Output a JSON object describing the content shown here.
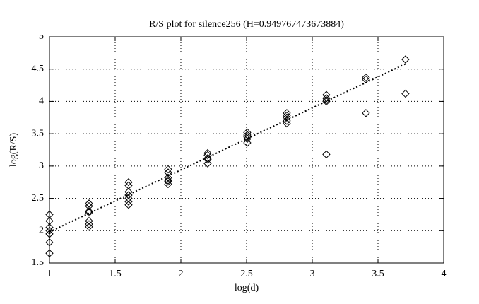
{
  "chart_data": {
    "type": "scatter",
    "title": "R/S plot for silence256 (H=0.949767473673884)",
    "x_label": "log(d)",
    "y_label": "log(R/S)",
    "xlim": [
      1,
      4
    ],
    "ylim": [
      1.5,
      5
    ],
    "xticks": [
      1,
      1.5,
      2,
      2.5,
      3,
      3.5,
      4
    ],
    "yticks": [
      1.5,
      2,
      2.5,
      3,
      3.5,
      4,
      4.5,
      5
    ],
    "grid": true,
    "series": [
      {
        "color": "#000000",
        "marker": "diamond",
        "x": [
          1,
          1,
          1,
          1,
          1,
          1,
          1,
          1.301,
          1.301,
          1.301,
          1.301,
          1.301,
          1.301,
          1.301,
          1.602,
          1.602,
          1.602,
          1.602,
          1.602,
          1.602,
          1.602,
          1.903,
          1.903,
          1.903,
          1.903,
          1.903,
          1.903,
          2.204,
          2.204,
          2.204,
          2.204,
          2.204,
          2.505,
          2.505,
          2.505,
          2.505,
          2.505,
          2.806,
          2.806,
          2.806,
          2.806,
          2.806,
          3.107,
          3.107,
          3.107,
          3.107,
          3.107,
          3.408,
          3.408,
          3.408,
          3.709,
          3.709
        ],
        "values": [
          2.25,
          2.15,
          2.05,
          2.0,
          1.95,
          1.82,
          1.65,
          2.42,
          2.38,
          2.3,
          2.28,
          2.15,
          2.1,
          2.06,
          2.75,
          2.7,
          2.6,
          2.55,
          2.5,
          2.45,
          2.4,
          2.95,
          2.9,
          2.82,
          2.78,
          2.76,
          2.72,
          3.2,
          3.17,
          3.12,
          3.1,
          3.04,
          3.52,
          3.48,
          3.45,
          3.42,
          3.36,
          3.82,
          3.78,
          3.75,
          3.7,
          3.66,
          4.1,
          4.05,
          4.02,
          4.0,
          3.18,
          4.37,
          4.34,
          3.82,
          4.65,
          4.12
        ]
      },
      {
        "color": "#000000",
        "line": "dotted",
        "x": [
          1,
          3.709
        ],
        "values": [
          1.98,
          4.58
        ]
      }
    ]
  }
}
